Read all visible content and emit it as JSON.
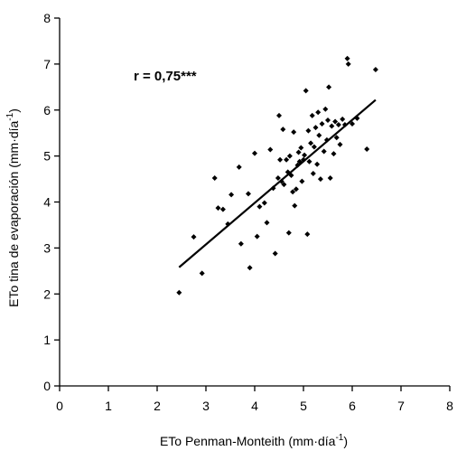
{
  "chart_data": {
    "type": "scatter",
    "xlabel": "ETo Penman-Monteith (mm·día",
    "xlabel_sup": "-1",
    "xlabel_tail": ")",
    "ylabel": "ETo tina de evaporación (mm·día",
    "ylabel_sup": "-1",
    "ylabel_tail": ")",
    "xlim": [
      0,
      8
    ],
    "ylim": [
      0,
      8
    ],
    "x_ticks": [
      "0",
      "1",
      "2",
      "3",
      "4",
      "5",
      "6",
      "7",
      "8"
    ],
    "y_ticks": [
      "0",
      "1",
      "2",
      "3",
      "4",
      "5",
      "6",
      "7",
      "8"
    ],
    "grid": false,
    "legend": false,
    "annotation": "r = 0,75***",
    "marker_color": "#000000",
    "points": [
      [
        2.45,
        2.03
      ],
      [
        2.75,
        3.24
      ],
      [
        2.92,
        2.45
      ],
      [
        3.18,
        4.52
      ],
      [
        3.25,
        3.87
      ],
      [
        3.35,
        3.84
      ],
      [
        3.45,
        3.52
      ],
      [
        3.52,
        4.16
      ],
      [
        3.68,
        4.76
      ],
      [
        3.72,
        3.09
      ],
      [
        3.87,
        4.18
      ],
      [
        3.9,
        2.57
      ],
      [
        4.0,
        5.06
      ],
      [
        4.05,
        3.25
      ],
      [
        4.1,
        3.9
      ],
      [
        4.2,
        3.98
      ],
      [
        4.25,
        3.55
      ],
      [
        4.32,
        5.14
      ],
      [
        4.38,
        4.3
      ],
      [
        4.42,
        2.88
      ],
      [
        4.48,
        4.52
      ],
      [
        4.5,
        5.88
      ],
      [
        4.52,
        4.92
      ],
      [
        4.55,
        4.45
      ],
      [
        4.58,
        5.58
      ],
      [
        4.6,
        4.38
      ],
      [
        4.65,
        4.92
      ],
      [
        4.68,
        4.65
      ],
      [
        4.7,
        3.33
      ],
      [
        4.72,
        5.0
      ],
      [
        4.75,
        4.58
      ],
      [
        4.78,
        4.22
      ],
      [
        4.8,
        5.52
      ],
      [
        4.82,
        3.92
      ],
      [
        4.85,
        4.28
      ],
      [
        4.88,
        4.8
      ],
      [
        4.9,
        5.08
      ],
      [
        4.92,
        4.88
      ],
      [
        4.95,
        5.18
      ],
      [
        4.97,
        4.45
      ],
      [
        5.0,
        4.92
      ],
      [
        5.02,
        5.02
      ],
      [
        5.05,
        6.42
      ],
      [
        5.08,
        3.3
      ],
      [
        5.1,
        5.55
      ],
      [
        5.12,
        4.88
      ],
      [
        5.15,
        5.28
      ],
      [
        5.18,
        5.88
      ],
      [
        5.2,
        4.62
      ],
      [
        5.22,
        5.2
      ],
      [
        5.25,
        5.62
      ],
      [
        5.28,
        4.82
      ],
      [
        5.3,
        5.95
      ],
      [
        5.32,
        5.45
      ],
      [
        5.35,
        4.5
      ],
      [
        5.38,
        5.7
      ],
      [
        5.42,
        5.1
      ],
      [
        5.45,
        6.02
      ],
      [
        5.48,
        5.35
      ],
      [
        5.5,
        5.78
      ],
      [
        5.52,
        6.5
      ],
      [
        5.55,
        4.52
      ],
      [
        5.58,
        5.65
      ],
      [
        5.62,
        5.05
      ],
      [
        5.65,
        5.75
      ],
      [
        5.68,
        5.4
      ],
      [
        5.72,
        5.68
      ],
      [
        5.75,
        5.25
      ],
      [
        5.8,
        5.8
      ],
      [
        5.85,
        5.68
      ],
      [
        5.9,
        7.12
      ],
      [
        5.92,
        7.0
      ],
      [
        6.0,
        5.7
      ],
      [
        6.1,
        5.82
      ],
      [
        6.3,
        5.15
      ],
      [
        6.48,
        6.88
      ]
    ],
    "regression_line": {
      "x": [
        2.45,
        6.48
      ],
      "y": [
        2.58,
        6.22
      ]
    }
  }
}
